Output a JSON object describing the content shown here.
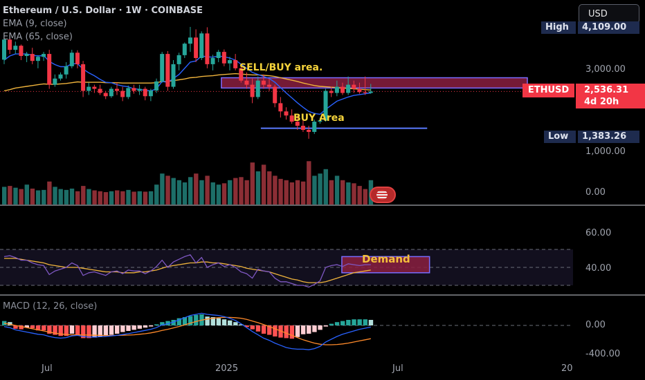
{
  "legend": {
    "title": "Ethereum / U.S. Dollar · 1W · COINBASE",
    "ema_fast": "EMA (9, close)",
    "ema_slow": "EMA (65, close)"
  },
  "currency_button": "USD",
  "badges": {
    "high_label": "High",
    "high_value": "4,109.00",
    "low_label": "Low",
    "low_value": "1,383.26",
    "symbol": "ETHUSD",
    "last_price": "2,536.31",
    "countdown": "4d 20h"
  },
  "price_axis_labels": [
    "3,000.00",
    "1,000.00",
    "0.00"
  ],
  "rsi_axis_labels": [
    "60.00",
    "40.00"
  ],
  "macd_axis_labels": [
    "0.00",
    "-400.00"
  ],
  "time_labels": [
    "Jul",
    "2025",
    "Jul",
    "20"
  ],
  "annotations": {
    "sell_buy": "SELL/BUY area.",
    "buy": "BUY Area",
    "demand": "Demand",
    "macd_title": "MACD (12, 26, close)"
  },
  "colors": {
    "up": "#26a69a",
    "down": "#f23645",
    "ema_fast": "#2962ff",
    "ema_slow": "#f0b43c",
    "rsi": "#7e57c2",
    "zone": "#8a1f3f",
    "zone_border": "#7a6cff"
  },
  "chart_data": {
    "type": "candlestick",
    "timeframe": "1W",
    "ylim": [
      0,
      4300
    ],
    "y_ticks": [
      0,
      1000,
      3000
    ],
    "high": 4109.0,
    "low": 1383.26,
    "last": 2536.31,
    "candles": [
      [
        3310,
        3950,
        3200,
        3800
      ],
      [
        3800,
        3900,
        3450,
        3550
      ],
      [
        3550,
        3750,
        3450,
        3650
      ],
      [
        3650,
        3680,
        3300,
        3400
      ],
      [
        3400,
        3500,
        3250,
        3450
      ],
      [
        3450,
        3600,
        3200,
        3280
      ],
      [
        3280,
        3420,
        3100,
        3380
      ],
      [
        3380,
        3500,
        3280,
        3450
      ],
      [
        3450,
        3550,
        2600,
        2700
      ],
      [
        2700,
        2950,
        2650,
        2850
      ],
      [
        2850,
        3000,
        2800,
        2950
      ],
      [
        2950,
        3250,
        2850,
        3150
      ],
      [
        3150,
        3550,
        3100,
        3480
      ],
      [
        3480,
        3540,
        3100,
        3200
      ],
      [
        3200,
        3280,
        2400,
        2550
      ],
      [
        2550,
        2750,
        2450,
        2650
      ],
      [
        2650,
        2700,
        2500,
        2600
      ],
      [
        2600,
        2700,
        2450,
        2500
      ],
      [
        2500,
        2550,
        2350,
        2420
      ],
      [
        2420,
        2650,
        2380,
        2600
      ],
      [
        2600,
        2750,
        2450,
        2550
      ],
      [
        2550,
        2650,
        2300,
        2400
      ],
      [
        2400,
        2680,
        2350,
        2620
      ],
      [
        2620,
        2700,
        2480,
        2550
      ],
      [
        2550,
        2700,
        2450,
        2600
      ],
      [
        2600,
        2650,
        2320,
        2420
      ],
      [
        2420,
        2600,
        2300,
        2560
      ],
      [
        2560,
        2850,
        2500,
        2780
      ],
      [
        2780,
        3500,
        2750,
        3450
      ],
      [
        3450,
        3520,
        2550,
        2650
      ],
      [
        2650,
        3300,
        2600,
        3200
      ],
      [
        3200,
        3480,
        3050,
        3420
      ],
      [
        3420,
        3730,
        3350,
        3700
      ],
      [
        3700,
        4109,
        3500,
        3850
      ],
      [
        3850,
        4050,
        3250,
        3350
      ],
      [
        3350,
        4000,
        3300,
        3950
      ],
      [
        3950,
        4100,
        3100,
        3200
      ],
      [
        3200,
        3430,
        3050,
        3350
      ],
      [
        3350,
        3550,
        3250,
        3500
      ],
      [
        3500,
        3560,
        3150,
        3220
      ],
      [
        3220,
        3380,
        3050,
        3300
      ],
      [
        3300,
        3450,
        3050,
        3100
      ],
      [
        3100,
        3200,
        2750,
        2800
      ],
      [
        2800,
        3000,
        2600,
        2700
      ],
      [
        2700,
        2850,
        2250,
        2400
      ],
      [
        2400,
        2900,
        2350,
        2800
      ],
      [
        2800,
        2950,
        2600,
        2700
      ],
      [
        2700,
        2850,
        2550,
        2650
      ],
      [
        2650,
        2700,
        2150,
        2250
      ],
      [
        2250,
        2400,
        1900,
        2050
      ],
      [
        2050,
        2150,
        1850,
        1950
      ],
      [
        1950,
        2100,
        1750,
        1800
      ],
      [
        1800,
        1950,
        1600,
        1700
      ],
      [
        1700,
        1850,
        1550,
        1600
      ],
      [
        1600,
        1700,
        1383,
        1550
      ],
      [
        1550,
        1850,
        1500,
        1800
      ],
      [
        1800,
        1900,
        1750,
        1830
      ],
      [
        1830,
        2600,
        1800,
        2550
      ],
      [
        2550,
        2650,
        2400,
        2500
      ],
      [
        2500,
        2800,
        2420,
        2650
      ],
      [
        2650,
        2750,
        2450,
        2500
      ],
      [
        2500,
        2900,
        2450,
        2700
      ],
      [
        2700,
        2800,
        2500,
        2600
      ],
      [
        2600,
        2750,
        2480,
        2520
      ],
      [
        2520,
        2900,
        2450,
        2500
      ],
      [
        2500,
        2720,
        2480,
        2536
      ]
    ],
    "volume": [
      4.0,
      4.2,
      3.8,
      3.5,
      4.5,
      3.6,
      3.2,
      3.3,
      5.2,
      4.0,
      3.5,
      3.3,
      3.6,
      3.0,
      4.2,
      3.5,
      3.2,
      3.0,
      2.8,
      3.0,
      3.2,
      3.0,
      3.3,
      2.9,
      3.0,
      2.9,
      3.0,
      4.5,
      7.0,
      6.5,
      6.0,
      5.5,
      5.0,
      6.2,
      7.0,
      5.5,
      6.5,
      5.0,
      4.5,
      4.8,
      5.5,
      6.0,
      6.2,
      5.5,
      9.5,
      7.5,
      9.0,
      7.5,
      6.5,
      5.8,
      5.5,
      5.0,
      5.5,
      5.2,
      9.8,
      6.5,
      7.0,
      8.0,
      5.5,
      6.5,
      5.5,
      5.0,
      4.8,
      4.2,
      3.5,
      5.5
    ],
    "ema_fast": [
      3300,
      3400,
      3450,
      3450,
      3450,
      3420,
      3400,
      3410,
      3270,
      3190,
      3140,
      3140,
      3210,
      3210,
      3080,
      2990,
      2920,
      2830,
      2760,
      2750,
      2700,
      2670,
      2650,
      2600,
      2590,
      2560,
      2550,
      2600,
      2780,
      2760,
      2850,
      2950,
      3100,
      3250,
      3280,
      3400,
      3380,
      3370,
      3400,
      3380,
      3350,
      3300,
      3200,
      3100,
      3000,
      2950,
      2900,
      2850,
      2760,
      2630,
      2500,
      2380,
      2260,
      2150,
      2050,
      2000,
      1980,
      2100,
      2200,
      2300,
      2350,
      2400,
      2440,
      2460,
      2480,
      2500
    ],
    "ema_slow": [
      2550,
      2580,
      2620,
      2640,
      2660,
      2680,
      2700,
      2720,
      2710,
      2710,
      2720,
      2730,
      2750,
      2770,
      2760,
      2760,
      2760,
      2760,
      2750,
      2750,
      2750,
      2740,
      2740,
      2740,
      2740,
      2740,
      2740,
      2750,
      2780,
      2780,
      2800,
      2820,
      2840,
      2870,
      2880,
      2900,
      2910,
      2920,
      2940,
      2950,
      2960,
      2970,
      2960,
      2950,
      2940,
      2940,
      2930,
      2920,
      2900,
      2870,
      2840,
      2810,
      2780,
      2740,
      2710,
      2680,
      2660,
      2650,
      2640,
      2630,
      2620,
      2610,
      2600,
      2590,
      2580,
      2570
    ],
    "rsi": [
      62,
      63,
      61,
      58,
      58,
      55,
      53,
      52,
      42,
      46,
      48,
      50,
      55,
      52,
      41,
      44,
      45,
      43,
      41,
      45,
      46,
      43,
      47,
      46,
      46,
      43,
      46,
      51,
      58,
      50,
      56,
      59,
      62,
      64,
      55,
      61,
      50,
      53,
      55,
      51,
      53,
      50,
      45,
      43,
      38,
      48,
      46,
      45,
      38,
      34,
      34,
      32,
      30,
      30,
      28,
      31,
      35,
      50,
      52,
      53,
      51,
      54,
      53,
      52,
      53,
      53
    ],
    "rsi_ma": [
      60,
      60,
      60,
      59,
      58,
      57,
      56,
      55,
      53,
      52,
      51,
      50,
      50,
      50,
      49,
      48,
      47,
      46,
      45,
      45,
      45,
      44,
      44,
      44,
      45,
      45,
      46,
      47,
      49,
      51,
      52,
      53,
      54,
      55,
      55,
      56,
      56,
      55,
      55,
      54,
      53,
      52,
      51,
      49,
      48,
      47,
      46,
      45,
      43,
      41,
      39,
      37,
      36,
      34,
      33,
      33,
      33,
      34,
      36,
      38,
      40,
      42,
      44,
      45,
      46,
      47
    ],
    "rsi_levels": [
      70,
      60,
      50,
      40,
      30
    ],
    "macd_hist": [
      80,
      60,
      -60,
      -70,
      -40,
      -50,
      -90,
      -90,
      -150,
      -170,
      -190,
      -190,
      -150,
      -180,
      -230,
      -230,
      -220,
      -200,
      -190,
      -170,
      -150,
      -120,
      -100,
      -80,
      -60,
      -40,
      -20,
      20,
      60,
      80,
      100,
      130,
      150,
      170,
      190,
      200,
      160,
      150,
      130,
      110,
      90,
      60,
      20,
      -30,
      -70,
      -110,
      -150,
      -170,
      -200,
      -220,
      -230,
      -240,
      -210,
      -160,
      -150,
      -120,
      -80,
      -20,
      30,
      60,
      80,
      100,
      110,
      110,
      110,
      100
    ],
    "macd_line": [
      -20,
      -40,
      -80,
      -100,
      -120,
      -140,
      -160,
      -170,
      -200,
      -220,
      -230,
      -220,
      -190,
      -180,
      -200,
      -210,
      -210,
      -205,
      -200,
      -190,
      -180,
      -165,
      -150,
      -130,
      -110,
      -90,
      -70,
      -40,
      10,
      30,
      60,
      100,
      140,
      180,
      200,
      220,
      200,
      190,
      180,
      160,
      130,
      90,
      30,
      -40,
      -110,
      -170,
      -230,
      -270,
      -320,
      -360,
      -400,
      -420,
      -430,
      -430,
      -440,
      -420,
      -380,
      -300,
      -250,
      -200,
      -160,
      -130,
      -100,
      -70,
      -50,
      -30
    ],
    "macd_signal": [
      40,
      20,
      0,
      -20,
      -40,
      -60,
      -80,
      -100,
      -120,
      -140,
      -155,
      -165,
      -170,
      -170,
      -172,
      -175,
      -178,
      -180,
      -182,
      -182,
      -180,
      -178,
      -175,
      -170,
      -160,
      -150,
      -135,
      -115,
      -90,
      -70,
      -45,
      -20,
      10,
      40,
      70,
      95,
      115,
      130,
      140,
      145,
      145,
      140,
      130,
      110,
      80,
      50,
      15,
      -20,
      -60,
      -100,
      -140,
      -180,
      -220,
      -260,
      -290,
      -320,
      -340,
      -350,
      -350,
      -345,
      -335,
      -320,
      -300,
      -280,
      -260,
      -240
    ],
    "sell_buy_zone": {
      "from_index": 39,
      "to_index": 65,
      "top": 2870,
      "bottom": 2620
    },
    "buy_line": {
      "from_index": 46,
      "to_index": 75,
      "price": 1640
    },
    "demand_box": {
      "from_index": 53,
      "to_index": 71,
      "top": 62,
      "bottom": 44
    }
  }
}
